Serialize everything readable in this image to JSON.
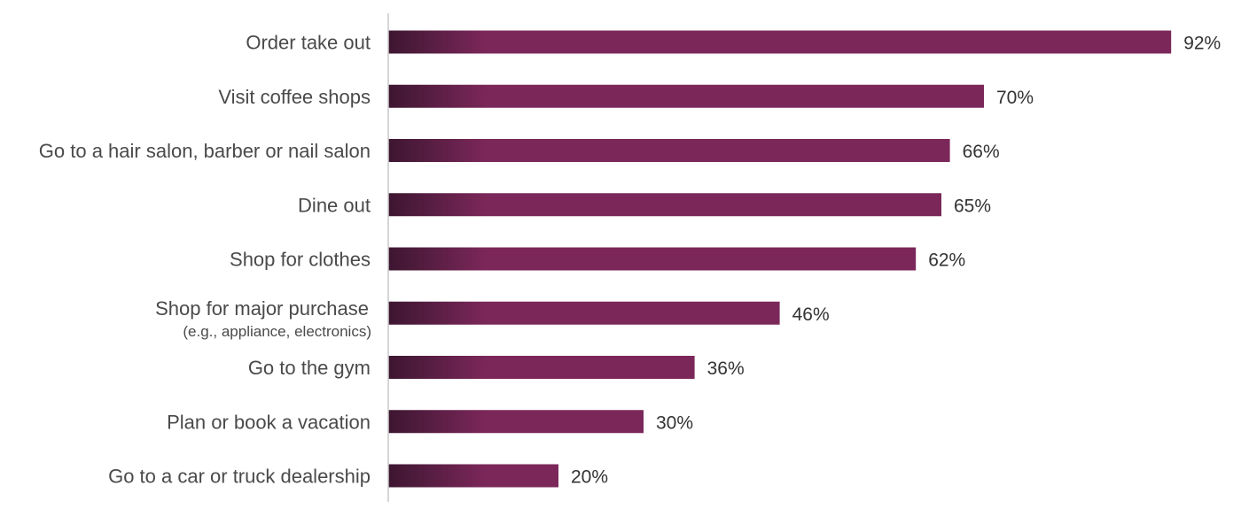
{
  "chart_data": {
    "type": "bar",
    "orientation": "horizontal",
    "categories": [
      {
        "label": "Order take out",
        "sublabel": ""
      },
      {
        "label": "Visit coffee shops",
        "sublabel": ""
      },
      {
        "label": "Go to a hair salon, barber or nail salon",
        "sublabel": ""
      },
      {
        "label": "Dine out",
        "sublabel": ""
      },
      {
        "label": "Shop for clothes",
        "sublabel": ""
      },
      {
        "label": "Shop for major purchase",
        "sublabel": "(e.g., appliance, electronics)"
      },
      {
        "label": "Go to the gym",
        "sublabel": ""
      },
      {
        "label": "Plan or book a vacation",
        "sublabel": ""
      },
      {
        "label": "Go to a car or truck dealership",
        "sublabel": ""
      }
    ],
    "values": [
      92,
      70,
      66,
      65,
      62,
      46,
      36,
      30,
      20
    ],
    "value_labels": [
      "92%",
      "70%",
      "66%",
      "65%",
      "62%",
      "46%",
      "36%",
      "30%",
      "20%"
    ],
    "unit": "%",
    "xlim": [
      0,
      100
    ],
    "grid": false,
    "legend": "none",
    "colors": {
      "bar_start": "#3d1631",
      "bar_end": "#7b2759",
      "axis_line": "#c8c8c8"
    }
  }
}
